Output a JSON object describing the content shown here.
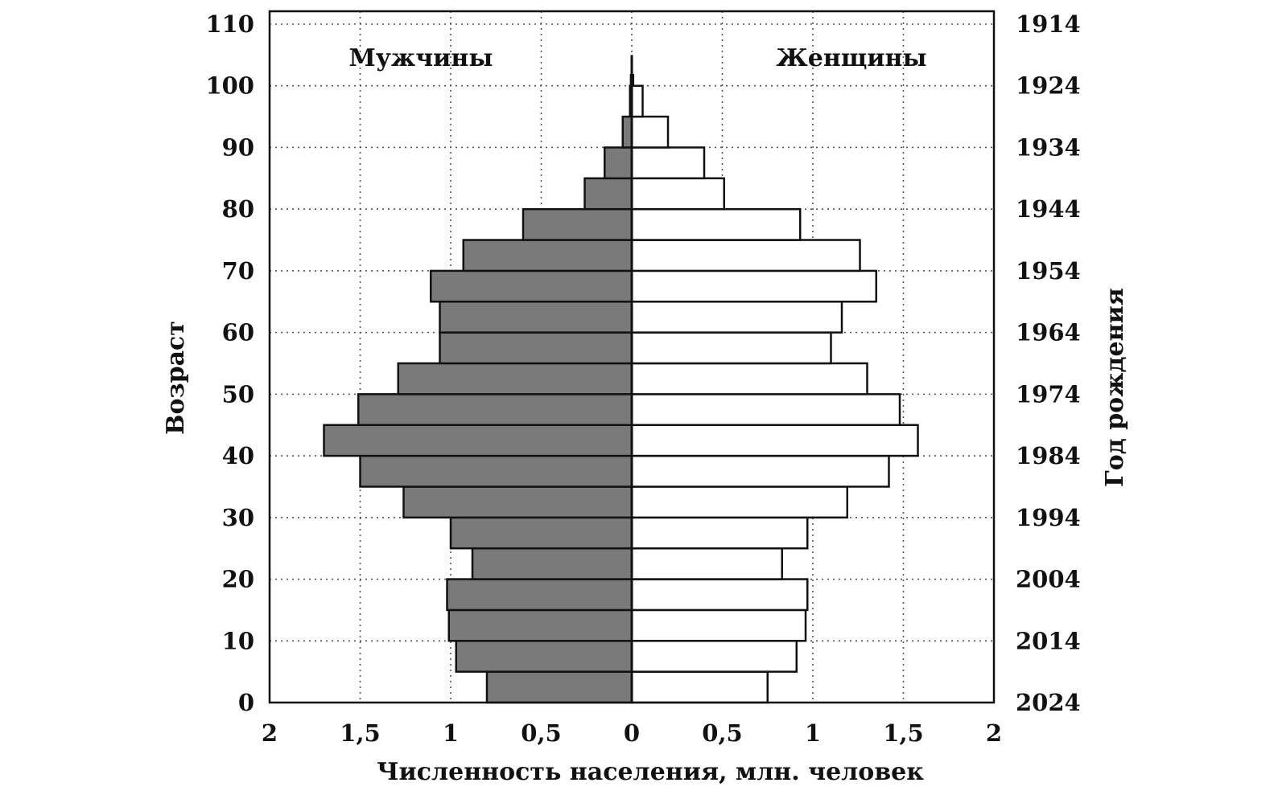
{
  "chart_data": {
    "type": "bar",
    "orientation": "horizontal",
    "xlabel": "Численность населения, млн. человек",
    "ylabel_left": "Возраст",
    "ylabel_right": "Год рождения",
    "xlim": [
      -2,
      2
    ],
    "ylim": [
      0,
      110
    ],
    "grid": true,
    "x_ticks": [
      "2",
      "1,5",
      "1",
      "0,5",
      "0",
      "0,5",
      "1",
      "1,5",
      "2"
    ],
    "y_ticks_left": [
      "0",
      "10",
      "20",
      "30",
      "40",
      "50",
      "60",
      "70",
      "80",
      "90",
      "100",
      "110"
    ],
    "y_ticks_right": [
      "2024",
      "2014",
      "2004",
      "1994",
      "1984",
      "1974",
      "1964",
      "1954",
      "1944",
      "1934",
      "1924",
      "1914"
    ],
    "age_groups": [
      0,
      5,
      10,
      15,
      20,
      25,
      30,
      35,
      40,
      45,
      50,
      55,
      60,
      65,
      70,
      75,
      80,
      85,
      90,
      95,
      100
    ],
    "series": [
      {
        "name": "Мужчины",
        "values": [
          0.8,
          0.97,
          1.01,
          1.02,
          0.88,
          1.0,
          1.26,
          1.5,
          1.7,
          1.51,
          1.29,
          1.06,
          1.06,
          1.11,
          0.93,
          0.6,
          0.26,
          0.15,
          0.05,
          0.01,
          0.005
        ]
      },
      {
        "name": "Женщины",
        "values": [
          0.75,
          0.91,
          0.96,
          0.97,
          0.83,
          0.97,
          1.19,
          1.42,
          1.58,
          1.48,
          1.3,
          1.1,
          1.16,
          1.35,
          1.26,
          0.93,
          0.51,
          0.4,
          0.2,
          0.06,
          0.008
        ]
      }
    ]
  }
}
